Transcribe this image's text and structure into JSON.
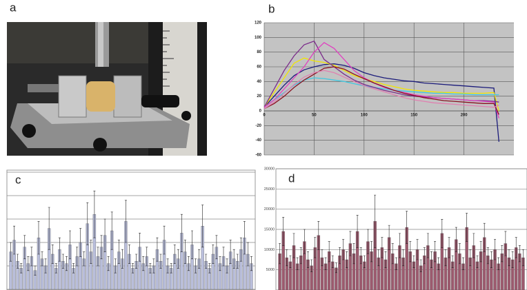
{
  "panel_labels": [
    "a",
    "b",
    "c",
    "d"
  ],
  "chart_data": [
    {
      "type": "line",
      "xlim": [
        0,
        250
      ],
      "xticks": [
        0,
        50,
        100,
        150,
        200
      ],
      "ylim": [
        -60,
        120
      ],
      "yticks": [
        -60,
        -40,
        -20,
        0,
        20,
        40,
        60,
        80,
        100,
        120
      ],
      "grid": true,
      "x": [
        0,
        10,
        20,
        30,
        40,
        50,
        60,
        70,
        80,
        90,
        100,
        110,
        120,
        130,
        140,
        150,
        160,
        170,
        180,
        190,
        200,
        210,
        220,
        230,
        235
      ],
      "series": [
        {
          "color": "#1a1a7a",
          "values": [
            5,
            20,
            35,
            48,
            56,
            60,
            63,
            64,
            62,
            58,
            52,
            48,
            45,
            43,
            41,
            40,
            38,
            37,
            36,
            35,
            34,
            33,
            32,
            31,
            -42
          ]
        },
        {
          "color": "#f2e600",
          "values": [
            5,
            25,
            45,
            65,
            72,
            68,
            66,
            62,
            55,
            48,
            44,
            40,
            36,
            33,
            30,
            28,
            27,
            26,
            25,
            25,
            24,
            24,
            24,
            25,
            0
          ]
        },
        {
          "color": "#40c8e0",
          "values": [
            5,
            15,
            25,
            35,
            42,
            45,
            44,
            42,
            40,
            37,
            34,
            32,
            30,
            28,
            27,
            26,
            25,
            24,
            24,
            23,
            23,
            22,
            22,
            22,
            22
          ]
        },
        {
          "color": "#7a2a8a",
          "values": [
            5,
            30,
            55,
            75,
            90,
            95,
            70,
            60,
            50,
            42,
            36,
            32,
            28,
            25,
            22,
            20,
            19,
            18,
            17,
            16,
            15,
            14,
            14,
            13,
            12
          ]
        },
        {
          "color": "#e040c0",
          "values": [
            5,
            15,
            30,
            45,
            60,
            80,
            93,
            85,
            70,
            55,
            45,
            38,
            32,
            28,
            25,
            22,
            20,
            18,
            17,
            16,
            15,
            14,
            13,
            12,
            -10
          ]
        },
        {
          "color": "#8a1020",
          "values": [
            3,
            10,
            20,
            32,
            42,
            50,
            58,
            60,
            57,
            50,
            44,
            38,
            33,
            28,
            24,
            21,
            18,
            16,
            14,
            13,
            12,
            11,
            10,
            10,
            -5
          ]
        },
        {
          "color": "#e080b0",
          "values": [
            3,
            12,
            24,
            36,
            46,
            52,
            55,
            52,
            46,
            40,
            34,
            30,
            26,
            22,
            18,
            15,
            13,
            11,
            10,
            9,
            8,
            7,
            6,
            5,
            8
          ]
        }
      ]
    },
    {
      "type": "bar",
      "color": "#b9bedb",
      "ylim": [
        0,
        5
      ],
      "yticks": [
        0,
        1,
        2,
        3,
        4,
        5
      ],
      "grid": true,
      "values": [
        1.6,
        2.1,
        1.2,
        0.9,
        1.8,
        1.1,
        1.4,
        0.8,
        2.2,
        1.3,
        1.0,
        2.6,
        1.5,
        0.9,
        1.7,
        1.2,
        1.1,
        1.9,
        0.9,
        1.4,
        2.0,
        1.3,
        2.8,
        1.6,
        3.2,
        1.4,
        1.8,
        2.3,
        1.1,
        2.5,
        1.0,
        1.6,
        1.3,
        2.9,
        1.5,
        0.9,
        1.2,
        1.8,
        1.1,
        1.4,
        0.9,
        1.0,
        1.7,
        1.2,
        2.1,
        1.0,
        0.9,
        1.5,
        1.3,
        2.4,
        1.6,
        1.1,
        1.9,
        1.0,
        1.3,
        2.7,
        1.2,
        0.9,
        1.5,
        1.8,
        1.1,
        1.4,
        1.0,
        1.6,
        1.3,
        1.2,
        1.7,
        2.2,
        1.5,
        1.1
      ],
      "errors": [
        0.4,
        0.6,
        0.3,
        0.2,
        0.5,
        0.3,
        0.4,
        0.2,
        0.7,
        0.3,
        0.3,
        0.9,
        0.4,
        0.2,
        0.5,
        0.3,
        0.3,
        0.6,
        0.2,
        0.4,
        0.6,
        0.3,
        0.9,
        0.5,
        1.0,
        0.4,
        0.5,
        0.7,
        0.3,
        0.8,
        0.3,
        0.5,
        0.4,
        0.9,
        0.4,
        0.2,
        0.3,
        0.6,
        0.3,
        0.4,
        0.2,
        0.3,
        0.5,
        0.3,
        0.6,
        0.3,
        0.2,
        0.4,
        0.4,
        0.8,
        0.5,
        0.3,
        0.6,
        0.3,
        0.4,
        0.9,
        0.3,
        0.2,
        0.4,
        0.5,
        0.3,
        0.4,
        0.3,
        0.5,
        0.4,
        0.3,
        0.5,
        0.7,
        0.5,
        0.3
      ]
    },
    {
      "type": "bar",
      "color": "#9c5a6e",
      "ylim": [
        0,
        30000
      ],
      "yticks": [
        5000,
        10000,
        15000,
        20000,
        25000,
        30000
      ],
      "grid": true,
      "values": [
        9000,
        14500,
        8000,
        7000,
        11000,
        6500,
        8500,
        12000,
        7500,
        6000,
        10500,
        13500,
        8000,
        6500,
        9500,
        7000,
        5500,
        8500,
        10000,
        7500,
        11500,
        9000,
        14500,
        8500,
        7000,
        12000,
        9500,
        17000,
        8000,
        10500,
        7500,
        13000,
        9000,
        6500,
        11000,
        8000,
        15500,
        9500,
        7000,
        10000,
        6000,
        8500,
        11000,
        7500,
        9500,
        6500,
        14000,
        8000,
        10500,
        7000,
        12500,
        9000,
        6500,
        15500,
        8000,
        11000,
        7000,
        9500,
        13000,
        8500,
        7500,
        10000,
        6500,
        9000,
        11500,
        8000,
        7500,
        10500,
        9000,
        8000
      ],
      "errors": [
        2500,
        3500,
        2000,
        1500,
        3000,
        1500,
        2000,
        3000,
        2000,
        1500,
        2500,
        3500,
        2000,
        1500,
        2500,
        1500,
        1200,
        2000,
        2500,
        2000,
        3000,
        2500,
        4000,
        2000,
        1500,
        3000,
        2500,
        6500,
        2000,
        2500,
        2000,
        3000,
        2500,
        1500,
        3000,
        2000,
        4000,
        2500,
        1500,
        2500,
        1500,
        2000,
        3000,
        2000,
        2500,
        1500,
        3500,
        2000,
        2500,
        1500,
        3000,
        2500,
        1500,
        3500,
        2000,
        3000,
        1500,
        2500,
        3500,
        2000,
        2000,
        2500,
        1500,
        2000,
        3000,
        2000,
        2000,
        2500,
        2000,
        2000
      ]
    }
  ]
}
